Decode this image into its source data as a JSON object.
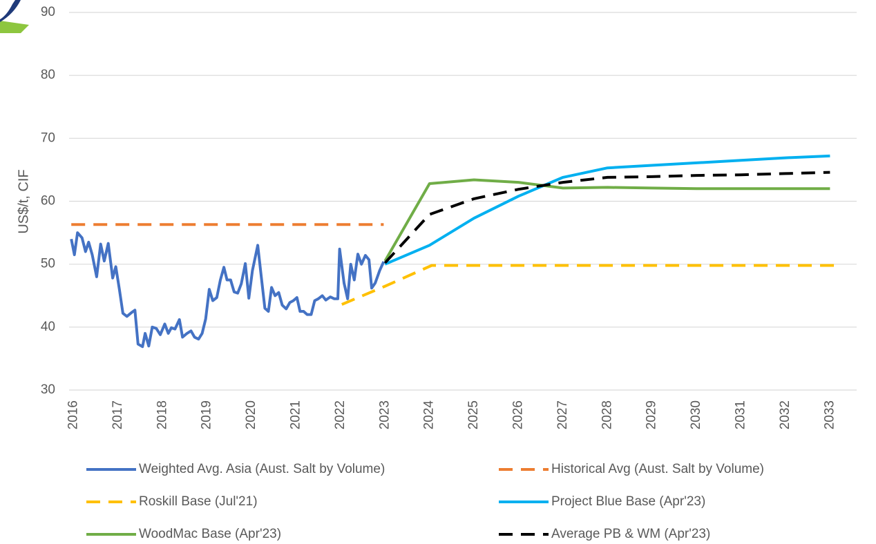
{
  "chart_data": {
    "type": "line",
    "ylabel": "US$/t, CIF",
    "xlim": [
      2015.9,
      2033.6
    ],
    "xticks": [
      2016,
      2017,
      2018,
      2019,
      2020,
      2021,
      2022,
      2023,
      2024,
      2025,
      2026,
      2027,
      2028,
      2029,
      2030,
      2031,
      2032,
      2033
    ],
    "ylim": [
      30,
      90
    ],
    "yticks": [
      30,
      40,
      50,
      60,
      70,
      80,
      90
    ],
    "grid": true,
    "legend": "bottom",
    "series": [
      {
        "name": "Weighted Avg. Asia (Aust. Salt by Volume)",
        "color": "#4472c4",
        "dash": false,
        "x": [
          2015.95,
          2016.02,
          2016.09,
          2016.19,
          2016.27,
          2016.34,
          2016.42,
          2016.52,
          2016.61,
          2016.69,
          2016.78,
          2016.88,
          2016.95,
          2017.03,
          2017.11,
          2017.2,
          2017.3,
          2017.38,
          2017.45,
          2017.55,
          2017.61,
          2017.69,
          2017.77,
          2017.86,
          2017.95,
          2018.05,
          2018.13,
          2018.2,
          2018.28,
          2018.38,
          2018.45,
          2018.55,
          2018.64,
          2018.72,
          2018.81,
          2018.89,
          2018.97,
          2019.05,
          2019.13,
          2019.22,
          2019.3,
          2019.38,
          2019.45,
          2019.53,
          2019.61,
          2019.69,
          2019.77,
          2019.86,
          2019.94,
          2020.02,
          2020.14,
          2020.22,
          2020.3,
          2020.38,
          2020.45,
          2020.53,
          2020.61,
          2020.69,
          2020.78,
          2020.86,
          2020.94,
          2021.02,
          2021.09,
          2021.17,
          2021.25,
          2021.34,
          2021.42,
          2021.5,
          2021.59,
          2021.67,
          2021.77,
          2021.86,
          2021.94,
          2021.98,
          2022.08,
          2022.16,
          2022.23,
          2022.31,
          2022.39,
          2022.47,
          2022.56,
          2022.64,
          2022.7,
          2022.78,
          2022.88,
          2022.97
        ],
        "values": [
          54,
          51.5,
          55,
          54.2,
          52,
          53.5,
          51.5,
          48,
          53.2,
          50.5,
          53.3,
          47.8,
          49.6,
          46,
          42.2,
          41.7,
          42.3,
          42.7,
          37.3,
          36.9,
          39,
          37,
          40,
          39.8,
          38.8,
          40.5,
          39,
          39.9,
          39.7,
          41.2,
          38.4,
          39,
          39.4,
          38.4,
          38.1,
          39,
          41.3,
          46,
          44.2,
          44.7,
          47.5,
          49.5,
          47.5,
          47.5,
          45.6,
          45.4,
          46.9,
          50.1,
          44.6,
          49,
          53,
          48,
          43,
          42.5,
          46.3,
          45,
          45.5,
          43.5,
          42.9,
          43.9,
          44.2,
          44.7,
          42.5,
          42.5,
          42,
          42,
          44.2,
          44.5,
          45,
          44.3,
          44.8,
          44.5,
          44.5,
          52.4,
          47,
          44.5,
          50,
          47.5,
          51.6,
          50,
          51.4,
          50.7,
          46.2,
          47,
          49,
          50.4
        ]
      },
      {
        "name": "Historical Avg (Aust. Salt by Volume)",
        "color": "#ed7d31",
        "dash": true,
        "x": [
          2015.95,
          2022.97
        ],
        "values": [
          56.3,
          56.3
        ]
      },
      {
        "name": "Roskill Base (Jul'21)",
        "color": "#ffc000",
        "dash": true,
        "x": [
          2022.03,
          2023,
          2024.05,
          2033.2
        ],
        "values": [
          43.6,
          46.5,
          49.8,
          49.8
        ]
      },
      {
        "name": "Project Blue Base (Apr'23)",
        "color": "#00b0f0",
        "dash": false,
        "x": [
          2023,
          2024,
          2025,
          2026,
          2027,
          2028,
          2029,
          2030,
          2031,
          2032,
          2033
        ],
        "values": [
          50,
          53,
          57.3,
          60.8,
          63.8,
          65.3,
          65.7,
          66.1,
          66.5,
          66.9,
          67.2
        ]
      },
      {
        "name": "WoodMac Base (Apr'23)",
        "color": "#70ad47",
        "dash": false,
        "x": [
          2023,
          2024,
          2025,
          2026,
          2027,
          2028,
          2029,
          2030,
          2031,
          2032,
          2033
        ],
        "values": [
          50.5,
          62.8,
          63.4,
          63,
          62.1,
          62.2,
          62.1,
          62,
          62,
          62,
          62
        ]
      },
      {
        "name": "Average PB & WM (Apr'23)",
        "color": "#000000",
        "dash": true,
        "x": [
          2023,
          2024,
          2025,
          2026,
          2027,
          2028,
          2029,
          2030,
          2031,
          2032,
          2033
        ],
        "values": [
          50.2,
          57.9,
          60.4,
          61.9,
          63,
          63.8,
          63.9,
          64.1,
          64.2,
          64.4,
          64.6
        ]
      }
    ]
  }
}
